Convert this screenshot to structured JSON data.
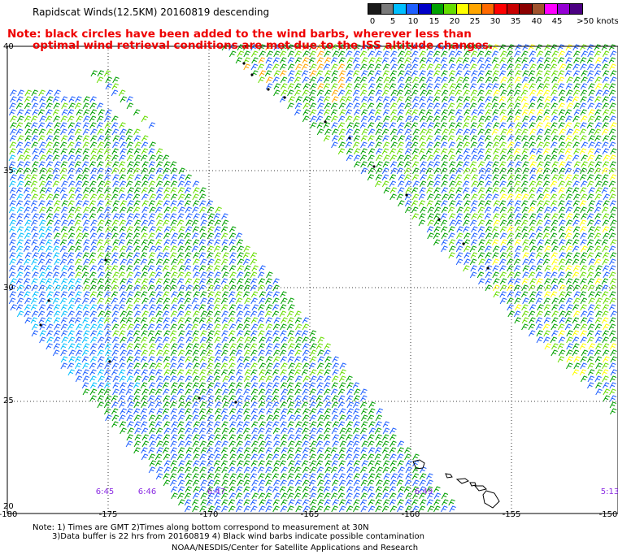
{
  "title": "Rapidscat Winds(12.5KM) 20160819 descending",
  "note_line1": "Note: black circles have been added to the wind barbs, wherever less than",
  "note_line2": "optimal wind retrieval conditions are met due to the ISS altitude changes.",
  "colorbar": {
    "labels": [
      "0",
      "5",
      "10",
      "15",
      "20",
      "25",
      "30",
      "35",
      "40",
      "45",
      ">50 knots"
    ],
    "colors": [
      "#1a1a1a",
      "#7a7a7a",
      "#00bfff",
      "#1e5fff",
      "#0000c8",
      "#00a000",
      "#66dd00",
      "#ffff00",
      "#ffa500",
      "#ff6a00",
      "#ff0000",
      "#c80000",
      "#8b0000",
      "#a0522d",
      "#ff00ff",
      "#9400d3",
      "#4b0082"
    ]
  },
  "axes": {
    "x_ticks": [
      "-180",
      "-175",
      "-170",
      "-165",
      "-160",
      "-155",
      "-150"
    ],
    "y_ticks": [
      "40",
      "35",
      "30",
      "25",
      "20"
    ]
  },
  "times": [
    "6:45",
    "6:46",
    "6:47",
    "6:49",
    "5:13"
  ],
  "footer": {
    "line1": "Note: 1) Times are GMT 2)Times along bottom correspond to measurement at 30N",
    "line2": "3)Data buffer is 22 hrs from 20160819 4) Black wind barbs indicate possible contamination",
    "credit": "NOAA/NESDIS/Center for Satellite Applications and Research"
  }
}
